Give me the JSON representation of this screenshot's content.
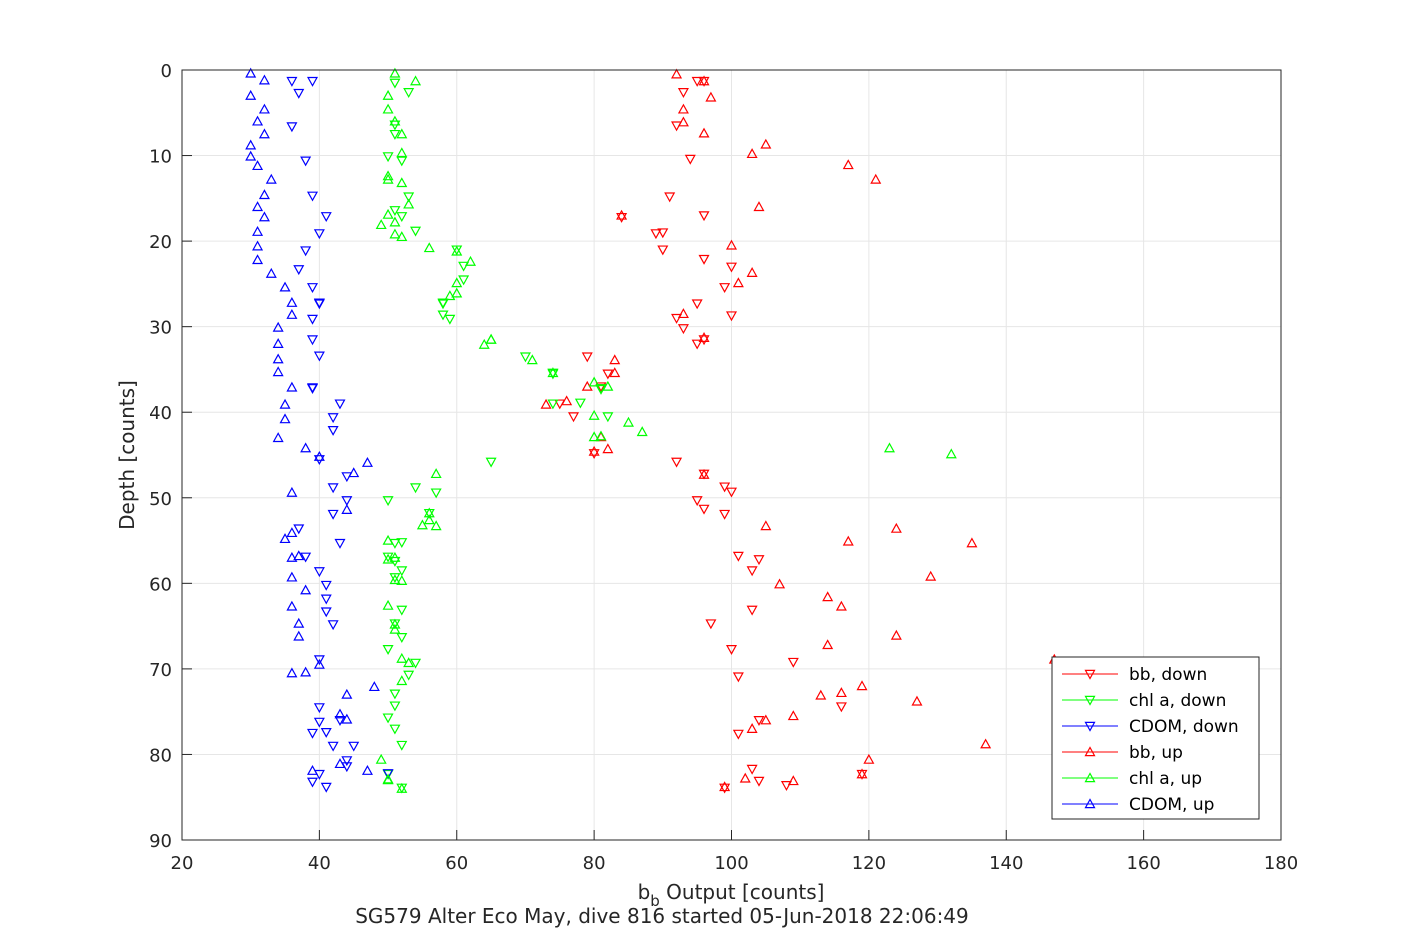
{
  "chart_data": {
    "type": "scatter",
    "xlabel": "b",
    "xlabel_sub": "b",
    "xlabel_rest": " Output [counts]",
    "ylabel": "Depth [counts]",
    "caption": "SG579 Alter Eco May, dive 816 started 05-Jun-2018 22:06:49",
    "xlim": [
      20,
      180
    ],
    "ylim": [
      0,
      90
    ],
    "y_reversed": true,
    "grid": true,
    "legend_position": "bottom-right",
    "xticks": [
      "20",
      "40",
      "60",
      "80",
      "100",
      "120",
      "140",
      "160",
      "180"
    ],
    "yticks": [
      "0",
      "10",
      "20",
      "30",
      "40",
      "50",
      "60",
      "70",
      "80",
      "90"
    ],
    "series": [
      {
        "name": "bb, down",
        "color": "#ff0000",
        "marker": "triangle-down",
        "x": [
          95,
          96,
          93,
          92,
          94,
          96,
          91,
          89,
          90,
          84,
          90,
          92,
          96,
          100,
          99,
          95,
          93,
          100,
          95,
          96,
          79,
          82,
          81,
          75,
          77,
          81,
          80,
          92,
          96,
          99,
          100,
          95,
          96,
          99,
          101,
          104,
          103,
          103,
          97,
          100,
          109,
          101,
          116,
          104,
          101,
          103,
          108,
          119,
          104,
          99
        ],
        "y": [
          1.3,
          1.3,
          2.6,
          6.5,
          10.4,
          17,
          14.8,
          19.1,
          19,
          17.2,
          21,
          29,
          22.1,
          23,
          25.4,
          27.3,
          30.2,
          28.7,
          32,
          31.5,
          33.5,
          35.5,
          37,
          39,
          40.5,
          37.2,
          44.8,
          45.8,
          47.2,
          48.7,
          49.3,
          50.3,
          51.3,
          51.9,
          56.8,
          57.2,
          58.5,
          63.1,
          64.7,
          67.7,
          69.2,
          70.9,
          74.4,
          76,
          77.6,
          81.7,
          83.6,
          82.3,
          83.1,
          83.9
        ]
      },
      {
        "name": "chl a, down",
        "color": "#00ff00",
        "marker": "triangle-down",
        "x": [
          51,
          53,
          51,
          51,
          50,
          52,
          53,
          51,
          54,
          52,
          60,
          61,
          61,
          58,
          58,
          58,
          59,
          70,
          74,
          78,
          82,
          74,
          74,
          81,
          81,
          65,
          54,
          57,
          56,
          50,
          51,
          52,
          51,
          50,
          52,
          51,
          52,
          51,
          50,
          52,
          54,
          53,
          51,
          51,
          50,
          51,
          52,
          50,
          52
        ],
        "y": [
          1.5,
          2.6,
          6.4,
          7.5,
          10.1,
          10.6,
          14.8,
          16.4,
          18.8,
          17.1,
          21,
          22.9,
          24.5,
          27.3,
          28.6,
          27.2,
          29.1,
          33.5,
          35.4,
          38.9,
          40.5,
          35.5,
          39,
          37.2,
          37.3,
          45.8,
          48.8,
          49.4,
          51.8,
          50.3,
          55.3,
          55.2,
          57.4,
          56.9,
          58.5,
          59.3,
          63.1,
          64.7,
          67.7,
          66.3,
          69.3,
          70.7,
          72.9,
          74.3,
          75.7,
          77,
          78.9,
          82.3,
          83.9
        ]
      },
      {
        "name": "CDOM, down",
        "color": "#0000ff",
        "marker": "triangle-down",
        "x": [
          36,
          39,
          37,
          36,
          38,
          39,
          41,
          40,
          38,
          37,
          39,
          40,
          39,
          40,
          39,
          40,
          39,
          39,
          42,
          42,
          43,
          42,
          40,
          44,
          42,
          44,
          43,
          37,
          38,
          40,
          41,
          41,
          41,
          42,
          40,
          40,
          40,
          39,
          41,
          42,
          43,
          45,
          44,
          44,
          39,
          40,
          50,
          41
        ],
        "y": [
          1.3,
          1.3,
          2.7,
          6.6,
          10.6,
          14.7,
          17.1,
          19.1,
          21.1,
          23.3,
          25.4,
          27.3,
          29.1,
          33.4,
          31.5,
          27.2,
          37.2,
          37.1,
          40.6,
          42.1,
          39,
          48.8,
          45.5,
          50.3,
          51.9,
          47.5,
          55.3,
          53.6,
          56.9,
          58.6,
          60.2,
          61.8,
          63.3,
          64.8,
          68.9,
          74.5,
          76.2,
          77.5,
          77.4,
          79,
          76,
          79,
          80.7,
          81.4,
          83.2,
          82.3,
          82.2,
          83.8
        ]
      },
      {
        "name": "bb, up",
        "color": "#ff0000",
        "marker": "triangle-up",
        "x": [
          92,
          96,
          97,
          93,
          93,
          96,
          105,
          103,
          117,
          121,
          104,
          84,
          100,
          103,
          101,
          93,
          96,
          83,
          83,
          79,
          73,
          76,
          81,
          82,
          80,
          96,
          105,
          124,
          117,
          135,
          129,
          107,
          114,
          116,
          124,
          114,
          109,
          113,
          116,
          119,
          127,
          105,
          103,
          137,
          120,
          119,
          109,
          102,
          99,
          147
        ],
        "y": [
          0.5,
          1.3,
          3.2,
          4.6,
          6.1,
          7.4,
          8.7,
          9.8,
          11.1,
          12.8,
          16,
          17,
          20.5,
          23.7,
          24.9,
          28.5,
          31.3,
          33.9,
          35.4,
          37,
          39.1,
          38.7,
          42.9,
          44.3,
          44.6,
          47.3,
          53.3,
          53.6,
          55.1,
          55.3,
          59.2,
          60.1,
          61.6,
          62.7,
          66.1,
          67.2,
          75.5,
          73.1,
          72.8,
          72,
          73.8,
          76,
          77,
          78.8,
          80.6,
          82.3,
          83.1,
          82.8,
          83.8,
          68.9
        ]
      },
      {
        "name": "chl a, up",
        "color": "#00ff00",
        "marker": "triangle-up",
        "x": [
          51,
          54,
          50,
          50,
          51,
          52,
          52,
          50,
          50,
          52,
          53,
          50,
          51,
          49,
          51,
          52,
          56,
          60,
          62,
          60,
          60,
          59,
          65,
          65,
          64,
          74,
          71,
          80,
          82,
          81,
          80,
          87,
          85,
          80,
          123,
          132,
          57,
          56,
          57,
          56,
          55,
          50,
          51,
          50,
          51,
          52,
          50,
          51,
          51,
          53,
          52,
          52,
          49,
          50,
          50,
          52
        ],
        "y": [
          0.4,
          1.3,
          3,
          4.6,
          6,
          7.5,
          9.7,
          12.4,
          12.8,
          13.2,
          15.7,
          16.9,
          17.8,
          18.1,
          19.2,
          19.5,
          20.8,
          21.2,
          22.4,
          24.9,
          26.1,
          26.4,
          31.5,
          31.5,
          32.1,
          35.4,
          33.9,
          36.5,
          37,
          42.8,
          40.4,
          42.3,
          41.2,
          42.9,
          44.2,
          44.9,
          47.2,
          51.8,
          53.3,
          52.6,
          53.2,
          55,
          57,
          57.2,
          59.6,
          59.7,
          62.6,
          64.8,
          65.4,
          69.3,
          68.8,
          71.4,
          80.6,
          83,
          82.9,
          84
        ]
      },
      {
        "name": "CDOM, up",
        "color": "#0000ff",
        "marker": "triangle-up",
        "x": [
          30,
          32,
          30,
          32,
          31,
          32,
          30,
          30,
          31,
          33,
          32,
          31,
          32,
          31,
          31,
          31,
          33,
          35,
          36,
          36,
          34,
          34,
          34,
          34,
          36,
          35,
          35,
          34,
          38,
          40,
          47,
          45,
          44,
          36,
          35,
          36,
          36,
          36,
          37,
          38,
          36,
          37,
          37,
          38,
          36,
          40,
          44,
          43,
          48,
          44,
          47,
          43,
          39
        ],
        "y": [
          0.4,
          1.2,
          3,
          4.6,
          6,
          7.5,
          8.8,
          10.1,
          11.2,
          12.8,
          14.6,
          16,
          17.2,
          18.9,
          20.6,
          22.2,
          23.8,
          25.4,
          27.2,
          28.6,
          30.1,
          32,
          33.8,
          35.3,
          37.1,
          39.1,
          40.8,
          43,
          44.2,
          45.2,
          45.9,
          47.1,
          51.4,
          49.4,
          54.8,
          54.1,
          57,
          59.3,
          56.8,
          60.8,
          62.7,
          64.7,
          66.2,
          70.4,
          70.5,
          69.5,
          73,
          75.3,
          72.1,
          75.9,
          81.9,
          81.1,
          81.9
        ]
      }
    ]
  }
}
